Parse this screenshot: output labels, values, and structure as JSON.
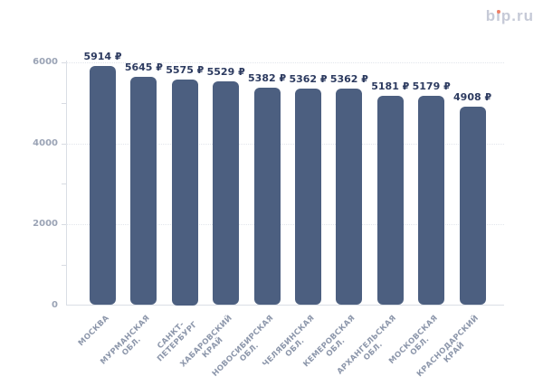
{
  "logo": {
    "text": "bip.ru",
    "text_color": "#c6cad7",
    "dot_color": "#f08066"
  },
  "chart_data": {
    "type": "bar",
    "title": "",
    "xlabel": "",
    "ylabel": "",
    "categories": [
      "МОСКВА",
      "МУРМАНСКАЯ\nОБЛ.",
      "САНКТ-\nПЕТЕРБУРГ",
      "ХАБАРОВСКИЙ\nКРАЙ",
      "НОВОСИБИРСКАЯ\nОБЛ.",
      "ЧЕЛЯБИНСКАЯ\nОБЛ.",
      "КЕМЕРОВСКАЯ\nОБЛ.",
      "АРХАНГЕЛЬСКАЯ\nОБЛ.",
      "МОСКОВСКАЯ\nОБЛ.",
      "КРАСНОДАРСКИЙ\nКРАЙ"
    ],
    "values": [
      5914,
      5645,
      5575,
      5529,
      5382,
      5362,
      5362,
      5181,
      5179,
      4908
    ],
    "value_labels": [
      "5914 ₽",
      "5645 ₽",
      "5575 ₽",
      "5529 ₽",
      "5382 ₽",
      "5362 ₽",
      "5362 ₽",
      "5181 ₽",
      "5179 ₽",
      "4908 ₽"
    ],
    "currency": "₽",
    "ylim": [
      0,
      6000
    ],
    "y_ticks": [
      0,
      2000,
      4000,
      6000
    ],
    "y_minor_tick_step": 1000,
    "grid": "horizontal-dotted-major",
    "legend_position": "none",
    "bar_color": "#4c5f80",
    "value_label_color": "#2d3b60",
    "y_axis_label_color": "#9aa3b5",
    "category_label_color": "#8d97ab"
  }
}
